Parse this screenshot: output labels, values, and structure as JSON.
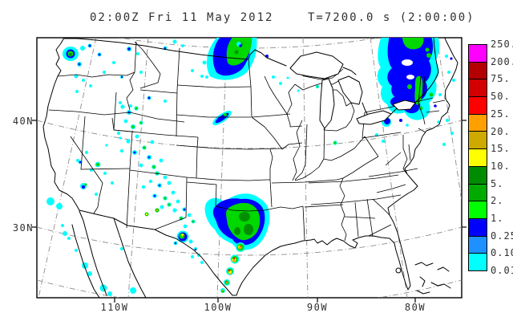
{
  "header": {
    "title_left": "02:00Z Fri 11 May 2012",
    "title_right": "T=7200.0 s (2:00:00)"
  },
  "axes": {
    "lat_labels": [
      "40N",
      "30N"
    ],
    "lon_labels": [
      "110W",
      "100W",
      "90W",
      "80W"
    ]
  },
  "colorbar": {
    "labels": [
      "250.",
      "200.",
      "75.",
      "50.",
      "25.",
      "20.",
      "15.",
      "10.",
      "5.",
      "2.",
      "1.",
      "0.25",
      "0.10",
      "0.01"
    ],
    "colors": [
      "#FF00FF",
      "#B40000",
      "#D20000",
      "#FF0000",
      "#FFA000",
      "#CCAA00",
      "#FFFF00",
      "#008C00",
      "#00AA00",
      "#00FF00",
      "#0000FF",
      "#1E90FF",
      "#00FFFF"
    ]
  },
  "map": {
    "background": "#FFFFFF",
    "outline_color": "#000000",
    "grid_color": "#8C8C8C",
    "precip_colors": {
      "trace": "#00FFFF",
      "light": "#0000FF",
      "moderate": "#00D800",
      "heavy_core": "#009000",
      "yellow": "#FFFF00",
      "orange": "#FFA000",
      "red": "#FF0000"
    }
  }
}
